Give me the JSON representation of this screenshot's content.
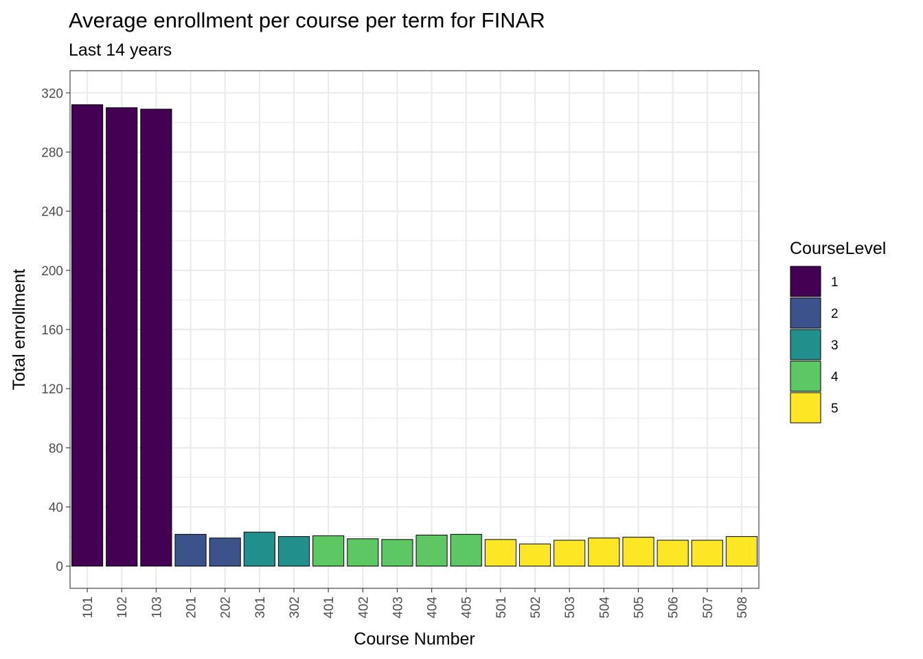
{
  "chart_data": {
    "type": "bar",
    "title": "Average enrollment per course per term for FINAR",
    "subtitle": "Last 14 years",
    "xlabel": "Course Number",
    "ylabel": "Total enrollment",
    "ylim": [
      -15,
      335
    ],
    "yticks": [
      0,
      40,
      80,
      120,
      160,
      200,
      240,
      280,
      320
    ],
    "y_tick_labels": [
      "0",
      "40",
      "80",
      "120",
      "160",
      "200",
      "240",
      "280",
      "320"
    ],
    "grid": true,
    "legend": {
      "title": "CourseLevel",
      "position": "right",
      "entries": [
        {
          "label": "1",
          "color": "#440154"
        },
        {
          "label": "2",
          "color": "#3b528b"
        },
        {
          "label": "3",
          "color": "#21908c"
        },
        {
          "label": "4",
          "color": "#5dc863"
        },
        {
          "label": "5",
          "color": "#fde725"
        }
      ]
    },
    "categories": [
      "101",
      "102",
      "103",
      "201",
      "202",
      "301",
      "302",
      "401",
      "402",
      "403",
      "404",
      "405",
      "501",
      "502",
      "503",
      "504",
      "505",
      "506",
      "507",
      "508"
    ],
    "values": [
      312,
      310,
      309,
      21.5,
      19,
      23,
      20,
      20.5,
      18.5,
      18,
      21,
      21.5,
      18,
      15,
      17.5,
      19,
      19.5,
      17.5,
      17.5,
      20
    ],
    "levels": [
      "1",
      "1",
      "1",
      "2",
      "2",
      "3",
      "3",
      "4",
      "4",
      "4",
      "4",
      "4",
      "5",
      "5",
      "5",
      "5",
      "5",
      "5",
      "5",
      "5"
    ]
  }
}
